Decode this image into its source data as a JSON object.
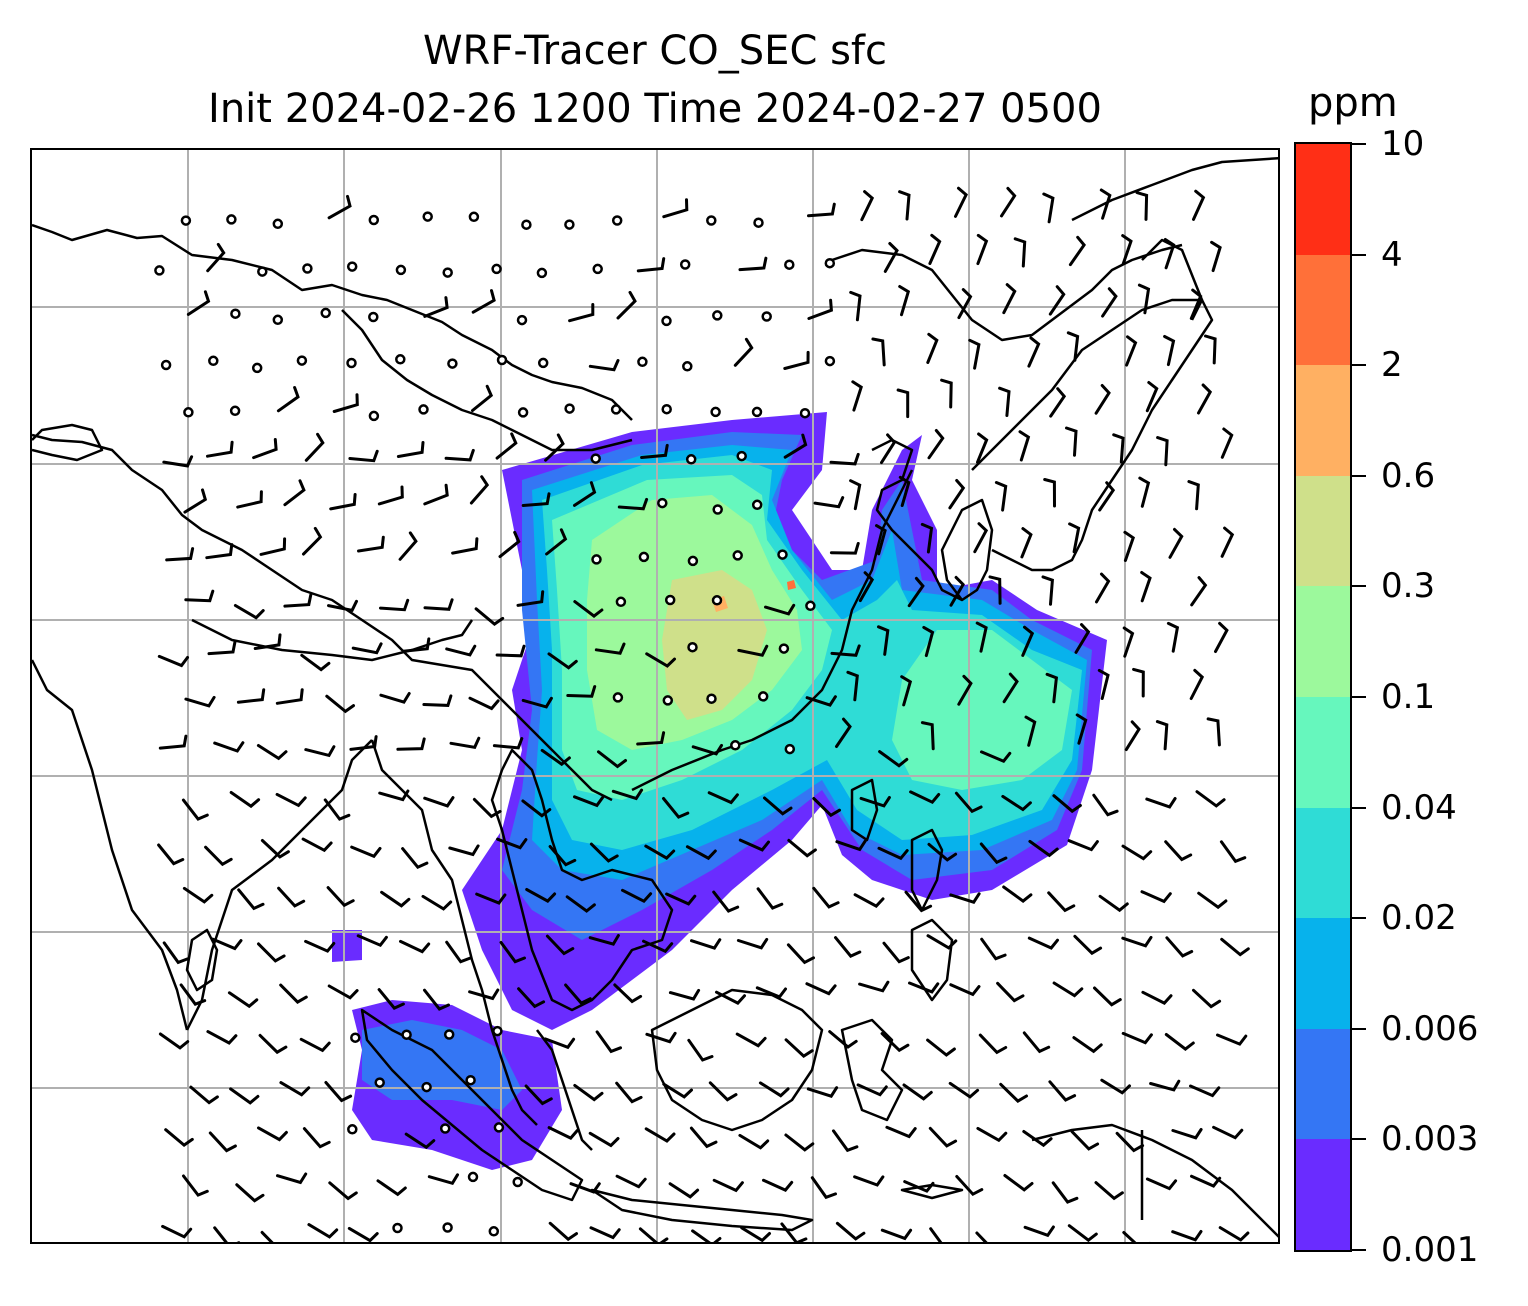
{
  "title": {
    "line1": "WRF-Tracer CO_SEC sfc",
    "line2": "Init 2024-02-26 1200 Time 2024-02-27 0500"
  },
  "colorbar": {
    "unit": "ppm",
    "levels": [
      "0.001",
      "0.003",
      "0.006",
      "0.02",
      "0.04",
      "0.1",
      "0.3",
      "0.6",
      "2",
      "4",
      "10"
    ],
    "colors": [
      "#6a2cff",
      "#3476f4",
      "#07b2ec",
      "#2fdcd6",
      "#66f7bd",
      "#9cf99c",
      "#cfe08a",
      "#ffb062",
      "#ff7039",
      "#ff2f16"
    ]
  },
  "map": {
    "gridlines": true,
    "coastlines": true,
    "wind_barbs": true,
    "land_color": "#ffffff",
    "line_color": "#000000",
    "grid_color": "#b0b0b0"
  }
}
